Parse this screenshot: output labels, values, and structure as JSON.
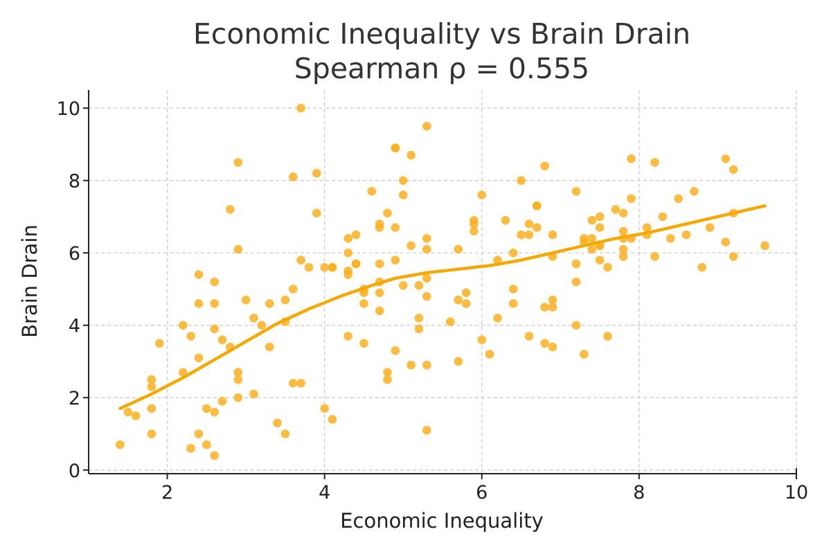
{
  "chart_data": {
    "type": "scatter",
    "title": "Economic Inequality vs Brain Drain",
    "subtitle": "Spearman ρ = 0.555",
    "xlabel": "Economic Inequality",
    "ylabel": "Brain Drain",
    "xlim": [
      1,
      10
    ],
    "ylim": [
      -0.1,
      10.5
    ],
    "xticks": [
      2,
      4,
      6,
      8,
      10
    ],
    "yticks": [
      0,
      2,
      4,
      6,
      8,
      10
    ],
    "grid": true,
    "colors": {
      "points": "#FBB020",
      "trend": "#F5A800",
      "axis": "#222222",
      "grid": "#c8c8c8"
    },
    "series": [
      {
        "kind": "points",
        "x": [
          1.4,
          1.5,
          1.6,
          1.8,
          1.8,
          1.8,
          1.8,
          1.9,
          2.2,
          2.2,
          2.3,
          2.3,
          2.4,
          2.4,
          2.4,
          2.4,
          2.5,
          2.5,
          2.6,
          2.6,
          2.6,
          2.6,
          2.6,
          2.7,
          2.7,
          2.8,
          2.8,
          2.9,
          2.9,
          2.9,
          2.9,
          2.9,
          3.0,
          3.1,
          3.1,
          3.2,
          3.3,
          3.3,
          3.4,
          3.5,
          3.5,
          3.5,
          3.6,
          3.6,
          3.6,
          3.7,
          3.7,
          3.7,
          3.8,
          3.9,
          3.9,
          4.0,
          4.0,
          4.1,
          4.1,
          4.1,
          4.3,
          4.3,
          4.3,
          4.3,
          4.3,
          4.4,
          4.4,
          4.4,
          4.5,
          4.5,
          4.5,
          4.5,
          4.6,
          4.7,
          4.7,
          4.7,
          4.7,
          4.7,
          4.7,
          4.8,
          4.8,
          4.8,
          4.9,
          4.9,
          4.9,
          4.9,
          4.9,
          5.0,
          5.0,
          5.0,
          5.1,
          5.1,
          5.1,
          5.2,
          5.2,
          5.2,
          5.3,
          5.3,
          5.3,
          5.3,
          5.3,
          5.3,
          5.3,
          5.6,
          5.7,
          5.7,
          5.7,
          5.8,
          5.8,
          5.9,
          5.9,
          5.9,
          6.0,
          6.0,
          6.1,
          6.2,
          6.2,
          6.3,
          6.4,
          6.4,
          6.4,
          6.5,
          6.5,
          6.6,
          6.6,
          6.6,
          6.7,
          6.7,
          6.7,
          6.8,
          6.8,
          6.8,
          6.9,
          6.9,
          6.9,
          6.9,
          6.9,
          7.2,
          7.2,
          7.2,
          7.2,
          7.3,
          7.3,
          7.3,
          7.4,
          7.4,
          7.4,
          7.5,
          7.5,
          7.5,
          7.5,
          7.5,
          7.6,
          7.6,
          7.7,
          7.8,
          7.8,
          7.8,
          7.8,
          7.8,
          7.9,
          7.9,
          7.9,
          8.1,
          8.1,
          8.2,
          8.2,
          8.3,
          8.4,
          8.5,
          8.6,
          8.7,
          8.8,
          8.9,
          9.1,
          9.1,
          9.2,
          9.2,
          9.2,
          9.6
        ],
        "y": [
          0.7,
          1.6,
          1.5,
          2.5,
          2.3,
          1.7,
          1.0,
          3.5,
          4.0,
          2.7,
          3.7,
          0.6,
          5.4,
          4.6,
          3.1,
          1.0,
          1.7,
          0.7,
          5.2,
          4.6,
          3.9,
          1.6,
          0.4,
          3.6,
          1.9,
          7.2,
          3.4,
          8.5,
          6.1,
          2.7,
          2.5,
          2.0,
          4.7,
          4.2,
          2.1,
          4.0,
          4.6,
          3.4,
          1.3,
          4.7,
          4.1,
          1.0,
          8.1,
          5.0,
          2.4,
          10.0,
          5.8,
          2.4,
          5.6,
          8.2,
          7.1,
          5.6,
          1.7,
          5.6,
          5.6,
          1.4,
          6.4,
          6.0,
          5.5,
          5.4,
          3.7,
          6.5,
          5.7,
          5.7,
          5.0,
          4.9,
          4.6,
          3.5,
          7.7,
          6.8,
          6.7,
          5.7,
          5.2,
          4.9,
          4.4,
          7.1,
          2.7,
          2.5,
          8.9,
          8.9,
          6.7,
          5.8,
          3.3,
          8.0,
          7.6,
          5.1,
          8.7,
          6.2,
          2.9,
          5.1,
          4.2,
          3.9,
          9.5,
          6.4,
          6.1,
          5.3,
          4.8,
          2.9,
          1.1,
          4.1,
          6.1,
          4.7,
          3.0,
          4.9,
          4.6,
          6.9,
          6.8,
          6.6,
          7.6,
          3.6,
          3.2,
          5.8,
          4.2,
          6.9,
          6.0,
          5.0,
          4.6,
          8.0,
          6.5,
          6.8,
          6.5,
          3.7,
          7.3,
          7.3,
          6.7,
          8.4,
          4.5,
          3.5,
          6.5,
          5.9,
          4.7,
          4.5,
          3.4,
          7.7,
          5.7,
          5.2,
          4.0,
          6.4,
          6.3,
          3.2,
          6.9,
          6.4,
          6.1,
          7.0,
          6.7,
          6.2,
          6.2,
          5.8,
          5.6,
          3.7,
          7.2,
          7.1,
          6.6,
          6.4,
          6.1,
          5.9,
          8.6,
          7.5,
          6.4,
          6.7,
          6.5,
          8.5,
          5.9,
          7.0,
          6.4,
          7.5,
          6.5,
          7.7,
          5.6,
          6.7,
          8.6,
          6.3,
          8.3,
          7.1,
          5.9,
          6.2
        ]
      },
      {
        "kind": "trend",
        "x": [
          1.4,
          1.8,
          2.2,
          2.6,
          3.0,
          3.4,
          3.8,
          4.2,
          4.6,
          4.9,
          5.3,
          5.7,
          6.1,
          6.5,
          6.9,
          7.3,
          7.7,
          8.1,
          8.5,
          8.9,
          9.3,
          9.6
        ],
        "y": [
          1.7,
          2.1,
          2.55,
          3.05,
          3.55,
          4.05,
          4.45,
          4.8,
          5.1,
          5.3,
          5.45,
          5.55,
          5.65,
          5.8,
          6.0,
          6.2,
          6.4,
          6.55,
          6.75,
          6.95,
          7.15,
          7.3
        ]
      }
    ]
  }
}
